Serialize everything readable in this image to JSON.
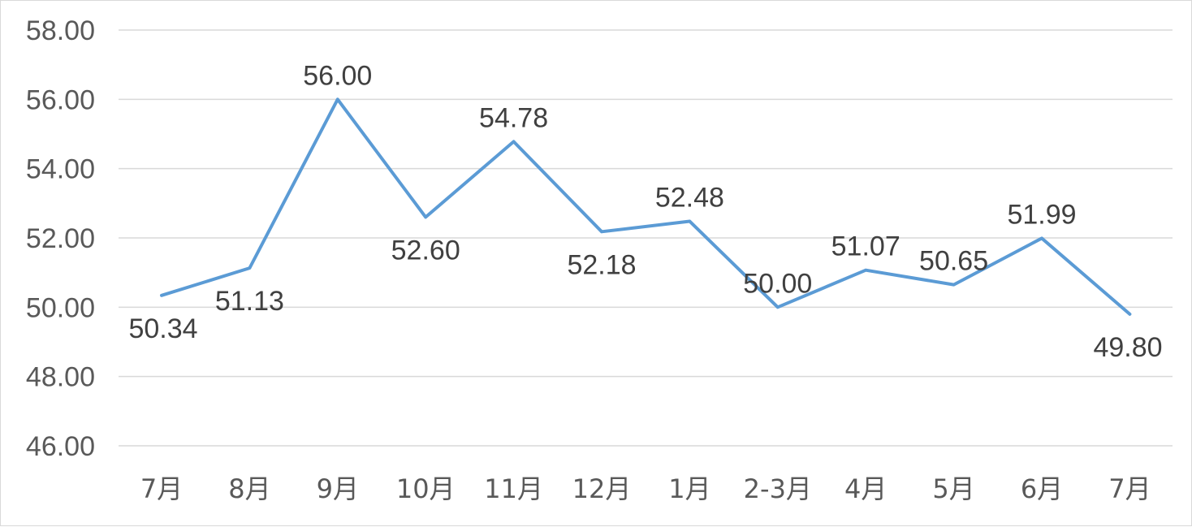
{
  "chart_data": {
    "type": "line",
    "title": "",
    "xlabel": "",
    "ylabel": "",
    "categories": [
      "7月",
      "8月",
      "9月",
      "10月",
      "11月",
      "12月",
      "1月",
      "2-3月",
      "4月",
      "5月",
      "6月",
      "7月"
    ],
    "series": [
      {
        "values": [
          50.34,
          51.13,
          56.0,
          52.6,
          54.78,
          52.18,
          52.48,
          50.0,
          51.07,
          50.65,
          51.99,
          49.8
        ],
        "value_labels": [
          "50.34",
          "51.13",
          "56.00",
          "52.60",
          "54.78",
          "52.18",
          "52.48",
          "50.00",
          "51.07",
          "50.65",
          "51.99",
          "49.80"
        ],
        "color": "#5b9bd5"
      }
    ],
    "ylim": [
      46,
      58
    ],
    "yticks": [
      46,
      48,
      50,
      52,
      54,
      56,
      58
    ],
    "ytick_labels": [
      "46.00",
      "48.00",
      "50.00",
      "52.00",
      "54.00",
      "56.00",
      "58.00"
    ],
    "grid": true,
    "legend": "none"
  }
}
